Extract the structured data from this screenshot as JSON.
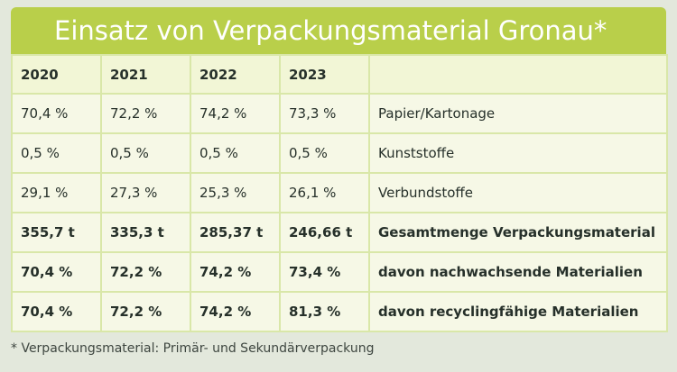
{
  "title": "Einsatz von Verpackungsmaterial Gronau*",
  "header": [
    "2020",
    "2021",
    "2022",
    "2023",
    ""
  ],
  "rows": [
    {
      "values": [
        "70,4 %",
        "72,2 %",
        "74,2 %",
        "73,3 %"
      ],
      "label": "Papier/Kartonage",
      "bold": false
    },
    {
      "values": [
        "0,5 %",
        "0,5 %",
        "0,5 %",
        "0,5 %"
      ],
      "label": "Kunststoffe",
      "bold": false
    },
    {
      "values": [
        "29,1 %",
        "27,3 %",
        "25,3 %",
        "26,1 %"
      ],
      "label": "Verbundstoffe",
      "bold": false
    },
    {
      "values": [
        "355,7 t",
        "335,3 t",
        "285,37 t",
        "246,66 t"
      ],
      "label": "Gesamtmenge Verpackungsmaterial",
      "bold": true
    },
    {
      "values": [
        "70,4 %",
        "72,2 %",
        "74,2 %",
        "73,4 %"
      ],
      "label": "davon nachwachsende Materialien",
      "bold": true
    },
    {
      "values": [
        "70,4 %",
        "72,2 %",
        "74,2 %",
        "81,3 %"
      ],
      "label": "davon recyclingfähige Materialien",
      "bold": true
    }
  ],
  "footnote": "* Verpackungsmaterial: Primär- und Sekundärverpackung",
  "colors": {
    "title_background": "#b9cf4a",
    "cell_background": "#f6f8e6",
    "grid_lines": "#d9e7a8",
    "page_background": "#e3e8dc"
  }
}
